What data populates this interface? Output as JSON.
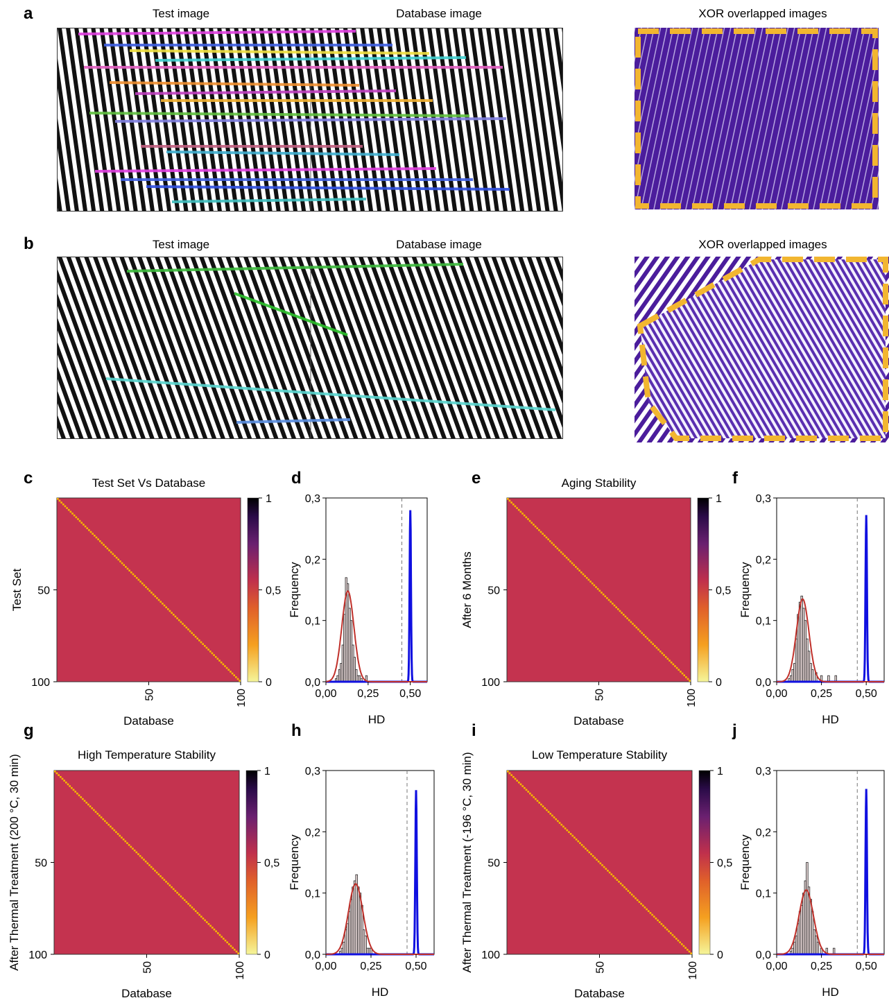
{
  "panels": {
    "a": {
      "label": "a",
      "test_title": "Test image",
      "db_title": "Database image",
      "xor_title": "XOR overlapped images"
    },
    "b": {
      "label": "b",
      "test_title": "Test image",
      "db_title": "Database image",
      "xor_title": "XOR overlapped images"
    },
    "c": {
      "label": "c"
    },
    "d": {
      "label": "d"
    },
    "e": {
      "label": "e"
    },
    "f": {
      "label": "f"
    },
    "g": {
      "label": "g"
    },
    "h": {
      "label": "h"
    },
    "i": {
      "label": "i"
    },
    "j": {
      "label": "j"
    }
  },
  "colors": {
    "heat_bg": "#c4334f",
    "diag": "#f5b800",
    "xor": "#4b1d9c",
    "frame": "#f2b630",
    "intra": "#c0302a",
    "inter": "#1010e0"
  },
  "chart_data": [
    {
      "id": "c",
      "type": "heatmap",
      "title": "Test Set Vs Database",
      "xlabel": "Database",
      "ylabel": "Test Set",
      "x_ticks": [
        "50",
        "100"
      ],
      "y_ticks": [
        "50",
        "100"
      ],
      "colorbar_ticks": [
        "1",
        "0,5",
        "0"
      ],
      "diagonal": 1,
      "offdiagonal": 0.5,
      "size": 100
    },
    {
      "id": "d",
      "type": "bar",
      "xlabel": "HD",
      "ylabel": "Frequency",
      "x_ticks": [
        "0,00",
        "0,25",
        "0,50"
      ],
      "y_ticks": [
        "0,0",
        "0,1",
        "0,2",
        "0,3"
      ],
      "xlim": [
        0,
        0.6
      ],
      "ylim": [
        0,
        0.3
      ],
      "threshold": 0.45,
      "intra_hist": {
        "x": [
          0.06,
          0.07,
          0.08,
          0.09,
          0.1,
          0.11,
          0.12,
          0.13,
          0.14,
          0.15,
          0.16,
          0.17,
          0.18,
          0.19,
          0.2,
          0.21,
          0.24
        ],
        "values": [
          0.005,
          0.01,
          0.02,
          0.03,
          0.06,
          0.11,
          0.17,
          0.16,
          0.12,
          0.1,
          0.06,
          0.04,
          0.02,
          0.01,
          0.01,
          0.005,
          0.01
        ]
      },
      "intra_fit": {
        "mean": 0.13,
        "sd": 0.036,
        "peak": 0.148
      },
      "inter_fit": {
        "mean": 0.5,
        "sd": 0.004,
        "peak": 0.28
      }
    },
    {
      "id": "e",
      "type": "heatmap",
      "title": "Aging Stability",
      "xlabel": "Database",
      "ylabel": "After 6 Months",
      "x_ticks": [
        "50",
        "100"
      ],
      "y_ticks": [
        "50",
        "100"
      ],
      "colorbar_ticks": [
        "1",
        "0,5",
        "0"
      ],
      "diagonal": 1,
      "offdiagonal": 0.5,
      "size": 100
    },
    {
      "id": "f",
      "type": "bar",
      "xlabel": "HD",
      "ylabel": "Frequency",
      "x_ticks": [
        "0,00",
        "0,25",
        "0,50"
      ],
      "y_ticks": [
        "0,0",
        "0,1",
        "0,2",
        "0,3"
      ],
      "xlim": [
        0,
        0.6
      ],
      "ylim": [
        0,
        0.3
      ],
      "threshold": 0.45,
      "intra_hist": {
        "x": [
          0.07,
          0.08,
          0.09,
          0.1,
          0.11,
          0.12,
          0.13,
          0.14,
          0.15,
          0.16,
          0.17,
          0.18,
          0.19,
          0.2,
          0.22,
          0.25,
          0.29,
          0.33
        ],
        "values": [
          0.005,
          0.01,
          0.02,
          0.03,
          0.07,
          0.11,
          0.13,
          0.14,
          0.12,
          0.1,
          0.07,
          0.05,
          0.03,
          0.02,
          0.015,
          0.01,
          0.01,
          0.01
        ]
      },
      "intra_fit": {
        "mean": 0.145,
        "sd": 0.035,
        "peak": 0.135
      },
      "inter_fit": {
        "mean": 0.5,
        "sd": 0.004,
        "peak": 0.272
      }
    },
    {
      "id": "g",
      "type": "heatmap",
      "title": "High Temperature Stability",
      "xlabel": "Database",
      "ylabel": "After Thermal Treatment (200 °C, 30 min)",
      "x_ticks": [
        "50",
        "100"
      ],
      "y_ticks": [
        "50",
        "100"
      ],
      "colorbar_ticks": [
        "1",
        "0,5",
        "0"
      ],
      "diagonal": 1,
      "offdiagonal": 0.5,
      "size": 100
    },
    {
      "id": "h",
      "type": "bar",
      "xlabel": "HD",
      "ylabel": "Frequency",
      "x_ticks": [
        "0,00",
        "0,25",
        "0,50"
      ],
      "y_ticks": [
        "0,0",
        "0,1",
        "0,2",
        "0,3"
      ],
      "xlim": [
        0,
        0.6
      ],
      "ylim": [
        0,
        0.3
      ],
      "threshold": 0.45,
      "intra_hist": {
        "x": [
          0.08,
          0.09,
          0.1,
          0.11,
          0.12,
          0.13,
          0.14,
          0.15,
          0.16,
          0.17,
          0.18,
          0.19,
          0.2,
          0.21,
          0.22,
          0.23,
          0.24,
          0.25
        ],
        "values": [
          0.005,
          0.01,
          0.02,
          0.04,
          0.05,
          0.07,
          0.09,
          0.11,
          0.12,
          0.13,
          0.11,
          0.1,
          0.08,
          0.04,
          0.03,
          0.01,
          0.01,
          0.01
        ]
      },
      "intra_fit": {
        "mean": 0.165,
        "sd": 0.04,
        "peak": 0.115
      },
      "inter_fit": {
        "mean": 0.5,
        "sd": 0.004,
        "peak": 0.268
      }
    },
    {
      "id": "i",
      "type": "heatmap",
      "title": "Low Temperature Stability",
      "xlabel": "Database",
      "ylabel": "After Thermal Treatment (-196 °C, 30 min)",
      "x_ticks": [
        "50",
        "100"
      ],
      "y_ticks": [
        "50",
        "100"
      ],
      "colorbar_ticks": [
        "1",
        "0,5",
        "0"
      ],
      "diagonal": 1,
      "offdiagonal": 0.5,
      "size": 100
    },
    {
      "id": "j",
      "type": "bar",
      "xlabel": "HD",
      "ylabel": "Frequency",
      "x_ticks": [
        "0,00",
        "0,25",
        "0,50"
      ],
      "y_ticks": [
        "0,0",
        "0,1",
        "0,2",
        "0,3"
      ],
      "xlim": [
        0,
        0.6
      ],
      "ylim": [
        0,
        0.3
      ],
      "threshold": 0.45,
      "intra_hist": {
        "x": [
          0.08,
          0.09,
          0.1,
          0.11,
          0.12,
          0.13,
          0.14,
          0.15,
          0.16,
          0.17,
          0.18,
          0.19,
          0.2,
          0.21,
          0.22,
          0.23,
          0.25,
          0.28,
          0.32
        ],
        "values": [
          0.005,
          0.01,
          0.02,
          0.03,
          0.05,
          0.07,
          0.08,
          0.1,
          0.12,
          0.15,
          0.11,
          0.09,
          0.07,
          0.04,
          0.03,
          0.02,
          0.01,
          0.01,
          0.01
        ]
      },
      "intra_fit": {
        "mean": 0.165,
        "sd": 0.04,
        "peak": 0.105
      },
      "inter_fit": {
        "mean": 0.5,
        "sd": 0.004,
        "peak": 0.27
      }
    }
  ]
}
